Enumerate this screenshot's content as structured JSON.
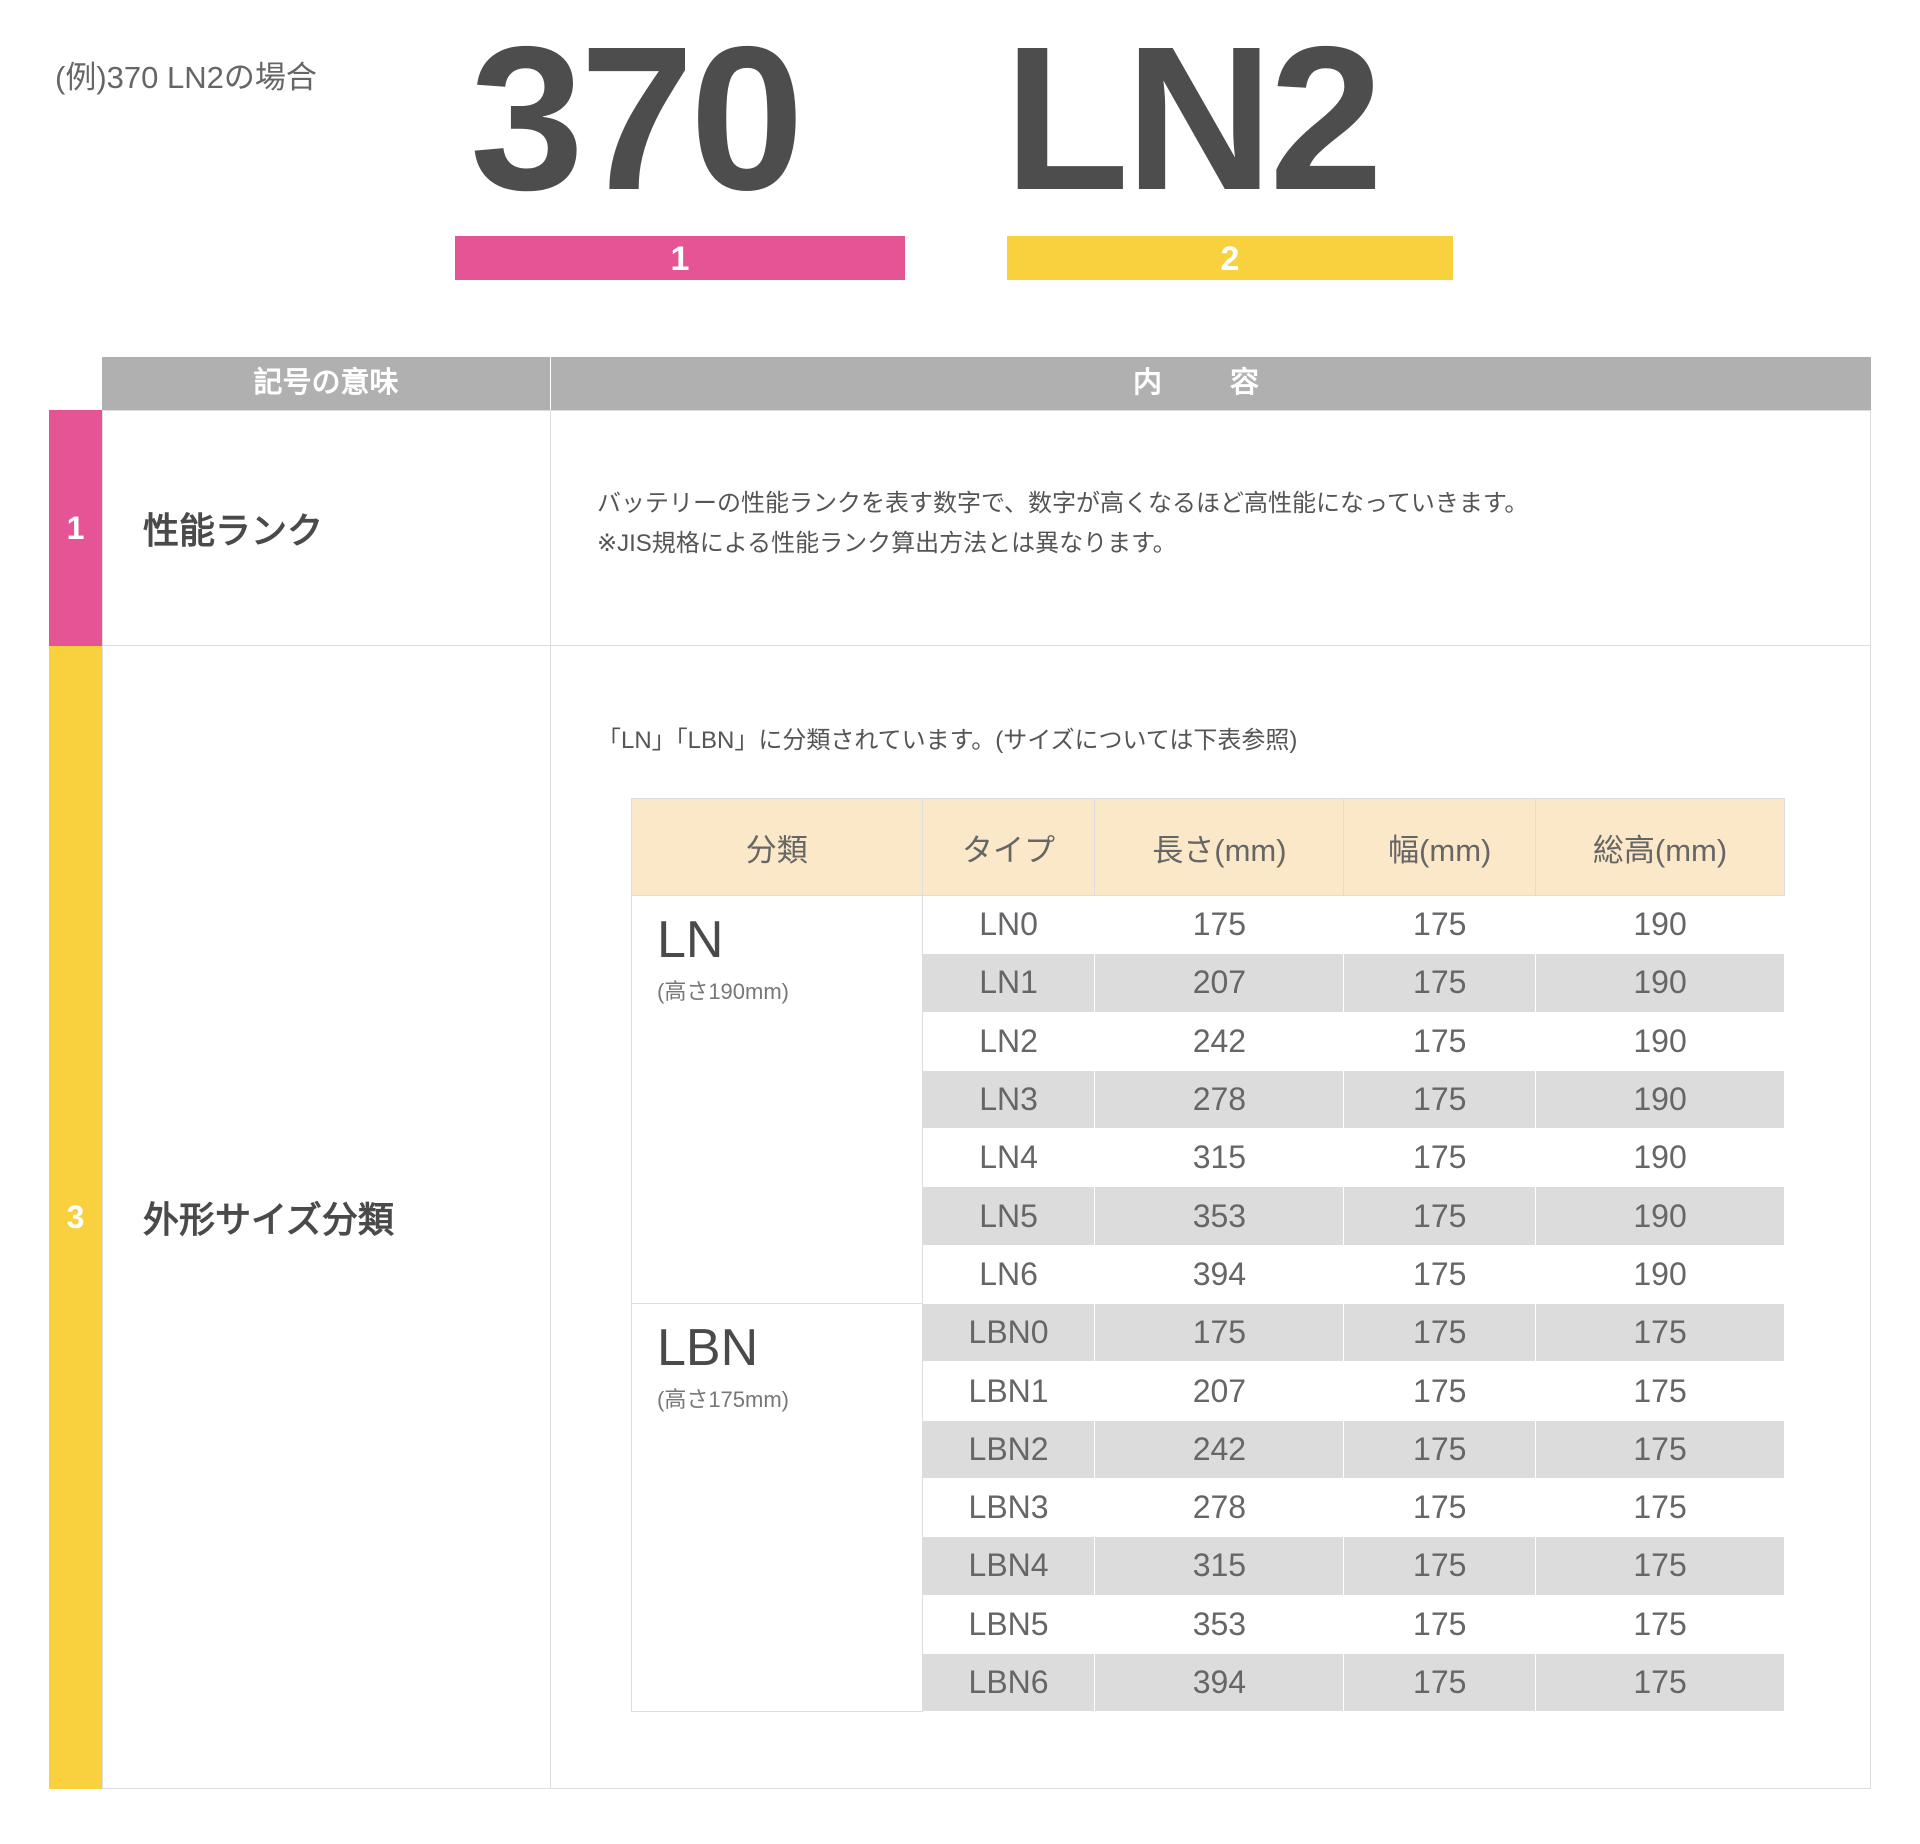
{
  "example_label": "(例)370 LN2の場合",
  "code": {
    "part1": "370",
    "part2": "LN2",
    "marker1": "1",
    "marker2": "2"
  },
  "colors": {
    "pink": "#e55495",
    "yellow": "#f9d13f",
    "header_gray": "#b0b0b0",
    "table_header": "#fbe8c8",
    "stripe": "#dcdcdc"
  },
  "table": {
    "headers": [
      "記号の意味",
      "内 容"
    ],
    "rows": [
      {
        "num": "1",
        "name": "性能ランク",
        "desc": [
          "バッテリーの性能ランクを表す数字で、数字が高くなるほど高性能になっていきます。",
          "※JIS規格による性能ランク算出方法とは異なります。"
        ]
      },
      {
        "num": "3",
        "name": "外形サイズ分類",
        "desc": [
          "「LN」「LBN」に分類されています。(サイズについては下表参照)"
        ]
      }
    ]
  },
  "size_table": {
    "headers": [
      "分類",
      "タイプ",
      "長さ(mm)",
      "幅(mm)",
      "総高(mm)"
    ],
    "groups": [
      {
        "name": "LN",
        "sub": "(高さ190mm)",
        "rows": [
          [
            "LN0",
            "175",
            "175",
            "190"
          ],
          [
            "LN1",
            "207",
            "175",
            "190"
          ],
          [
            "LN2",
            "242",
            "175",
            "190"
          ],
          [
            "LN3",
            "278",
            "175",
            "190"
          ],
          [
            "LN4",
            "315",
            "175",
            "190"
          ],
          [
            "LN5",
            "353",
            "175",
            "190"
          ],
          [
            "LN6",
            "394",
            "175",
            "190"
          ]
        ]
      },
      {
        "name": "LBN",
        "sub": "(高さ175mm)",
        "rows": [
          [
            "LBN0",
            "175",
            "175",
            "175"
          ],
          [
            "LBN1",
            "207",
            "175",
            "175"
          ],
          [
            "LBN2",
            "242",
            "175",
            "175"
          ],
          [
            "LBN3",
            "278",
            "175",
            "175"
          ],
          [
            "LBN4",
            "315",
            "175",
            "175"
          ],
          [
            "LBN5",
            "353",
            "175",
            "175"
          ],
          [
            "LBN6",
            "394",
            "175",
            "175"
          ]
        ]
      }
    ]
  }
}
